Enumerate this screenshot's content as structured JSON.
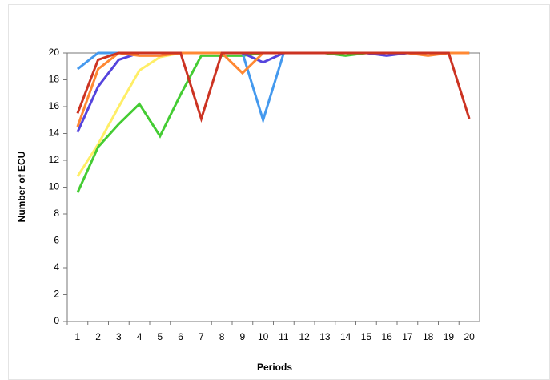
{
  "chart_data": {
    "type": "line",
    "xlabel": "Periods",
    "ylabel": "Number of ECU",
    "categories": [
      1,
      2,
      3,
      4,
      5,
      6,
      7,
      8,
      9,
      10,
      11,
      12,
      13,
      14,
      15,
      16,
      17,
      18,
      19,
      20
    ],
    "ylim": [
      0,
      20
    ],
    "yticks": [
      0,
      2,
      4,
      6,
      8,
      10,
      12,
      14,
      16,
      18,
      20
    ],
    "series": [
      {
        "color": "#ffee66",
        "values": [
          10.8,
          13.2,
          16,
          18.7,
          19.7,
          20,
          20,
          20,
          20,
          20,
          20,
          20,
          20,
          20,
          20,
          20,
          20,
          20,
          20,
          20
        ]
      },
      {
        "color": "#44cc33",
        "values": [
          9.6,
          13,
          14.7,
          16.2,
          13.8,
          16.9,
          19.8,
          19.8,
          19.8,
          20,
          20,
          20,
          20,
          19.8,
          20,
          20,
          20,
          20,
          20,
          20
        ]
      },
      {
        "color": "#4499ee",
        "values": [
          18.8,
          20,
          20,
          20,
          20,
          20,
          20,
          20,
          20,
          15,
          20,
          20,
          20,
          20,
          20,
          20,
          20,
          20,
          20,
          20
        ]
      },
      {
        "color": "#5544dd",
        "values": [
          14.1,
          17.5,
          19.5,
          20,
          20,
          20,
          20,
          20,
          20,
          19.3,
          20,
          20,
          20,
          20,
          20,
          19.8,
          20,
          20,
          20,
          20
        ]
      },
      {
        "color": "#ff8833",
        "values": [
          14.5,
          18.8,
          20,
          19.8,
          19.8,
          20,
          20,
          20,
          18.5,
          20,
          20,
          20,
          20,
          20,
          20,
          20,
          20,
          19.8,
          20,
          20
        ]
      },
      {
        "color": "#cc3322",
        "values": [
          15.5,
          19.5,
          20,
          20,
          20,
          20,
          15.1,
          20,
          20,
          20,
          20,
          20,
          20,
          20,
          20,
          20,
          20,
          20,
          20,
          15.1
        ]
      }
    ]
  }
}
